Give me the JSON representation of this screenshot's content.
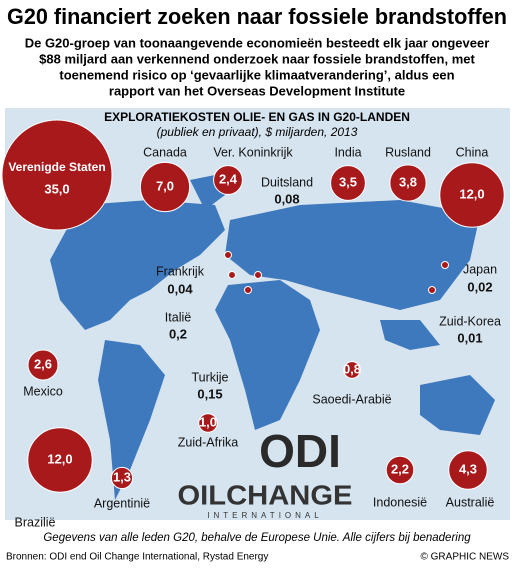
{
  "chart_data": {
    "type": "bubble-map",
    "title": "G20 financiert zoeken naar fossiele brandstoffen",
    "subtitle": [
      "De G20-groep van toonaangevende economieën besteedt elk jaar ongeveer",
      "$88 miljard aan verkennend onderzoek naar fossiele brandstoffen, met",
      "toenemend risico op ‘gevaarlijke klimaatverandering’, aldus een",
      "rapport van het Overseas Development Institute"
    ],
    "heading": "EXPLORATIEKOSTEN OLIE- EN GAS IN G20-LANDEN",
    "subheading": "(publiek en privaat), $ miljarden, 2013",
    "color": "#a8191c",
    "categories": [
      "Verenigde Staten",
      "Canada",
      "Ver. Koninkrijk",
      "Duitsland",
      "India",
      "Rusland",
      "China",
      "Frankrijk",
      "Italië",
      "Japan",
      "Zuid-Korea",
      "Mexico",
      "Turkije",
      "Saoedi-Arabië",
      "Zuid-Afrika",
      "Brazilië",
      "Argentinië",
      "Indonesië",
      "Australië"
    ],
    "values": [
      35,
      7,
      2.4,
      0.08,
      3.5,
      3.8,
      12,
      0.04,
      0.2,
      0.02,
      0.01,
      2.6,
      0.15,
      0.8,
      1,
      12,
      1.3,
      2.2,
      4.3
    ],
    "value_labels": [
      "35,0",
      "7,0",
      "2,4",
      "0,08",
      "3,5",
      "3,8",
      "12,0",
      "0,04",
      "0,2",
      "0,02",
      "0,01",
      "2,6",
      "0,15",
      "0,8",
      "1,0",
      "12,0",
      "1,3",
      "2,2",
      "4,3"
    ],
    "logos": [
      "ODI",
      "OILCHANGE",
      "INTERNATIONAL"
    ],
    "note": "Gegevens van alle leden G20, behalve de Europese Unie. Alle cijfers bij benadering",
    "source": "Bronnen: ODI end Oil Change International, Rystad Energy",
    "credit": "© GRAPHIC NEWS"
  }
}
